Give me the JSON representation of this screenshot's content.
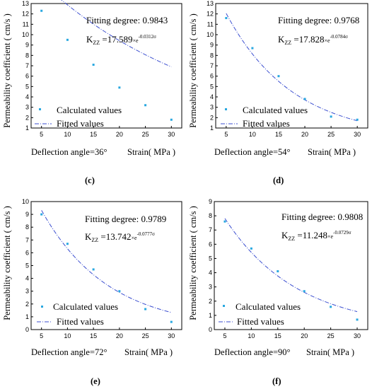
{
  "y_axis_label": "Permeability coefficient ( cm/s )",
  "x_axis_label": "Strain( MPa )",
  "legend": {
    "calculated": "Calculated values",
    "fitted": "Fitted values"
  },
  "annotation_prefix": "Fitting degree: ",
  "formula_parts": {
    "k": "K",
    "sub": "ZZ",
    "eq": " =",
    "mult": "×e",
    "sup_suffix": "σ"
  },
  "colors": {
    "points": "#29a8e0",
    "line": "#3c4fd0"
  },
  "chart_data": [
    {
      "type": "scatter",
      "caption": "(c)",
      "deflection_label": "Deflection angle=36°",
      "fitting_degree": "0.9843",
      "k_coef": "17.589",
      "k_exp": "-0.0312",
      "x": [
        5,
        10,
        15,
        20,
        25,
        30
      ],
      "calculated": [
        12.3,
        9.5,
        7.1,
        4.9,
        3.2,
        1.8
      ],
      "fit_a": 17.589,
      "fit_b": 0.0312,
      "xticks": [
        5,
        10,
        15,
        20,
        25,
        30
      ],
      "xlim": [
        3,
        32
      ],
      "ylim": [
        1,
        13
      ],
      "yticks": [
        1,
        2,
        3,
        4,
        5,
        6,
        7,
        8,
        9,
        10,
        11,
        12,
        13
      ]
    },
    {
      "type": "scatter",
      "caption": "(d)",
      "deflection_label": "Deflection angle=54°",
      "fitting_degree": "0.9768",
      "k_coef": "17.828",
      "k_exp": "-0.0784",
      "x": [
        5,
        10,
        15,
        20,
        25,
        30
      ],
      "calculated": [
        11.6,
        8.7,
        6.0,
        3.8,
        2.1,
        1.8
      ],
      "fit_a": 17.828,
      "fit_b": 0.0784,
      "xticks": [
        5,
        10,
        15,
        20,
        25,
        30
      ],
      "xlim": [
        3,
        32
      ],
      "ylim": [
        1,
        13
      ],
      "yticks": [
        1,
        2,
        3,
        4,
        5,
        6,
        7,
        8,
        9,
        10,
        11,
        12,
        13
      ]
    },
    {
      "type": "scatter",
      "caption": "(e)",
      "deflection_label": "Deflection angle=72°",
      "fitting_degree": "0.9789",
      "k_coef": "13.742",
      "k_exp": "-0.0777",
      "x": [
        5,
        10,
        15,
        20,
        25,
        30
      ],
      "calculated": [
        9.0,
        6.7,
        4.7,
        3.0,
        1.6,
        0.6
      ],
      "fit_a": 13.742,
      "fit_b": 0.0777,
      "xticks": [
        5,
        10,
        15,
        20,
        25,
        30
      ],
      "xlim": [
        3,
        32
      ],
      "ylim": [
        0,
        10
      ],
      "yticks": [
        0,
        1,
        2,
        3,
        4,
        5,
        6,
        7,
        8,
        9,
        10
      ]
    },
    {
      "type": "scatter",
      "caption": "(f)",
      "deflection_label": "Deflection angle=90°",
      "fitting_degree": "0.9808",
      "k_coef": "11.248",
      "k_exp": "-0.0729",
      "x": [
        5,
        10,
        15,
        20,
        25,
        30
      ],
      "calculated": [
        7.6,
        5.7,
        4.1,
        2.7,
        1.6,
        0.7
      ],
      "fit_a": 11.248,
      "fit_b": 0.0729,
      "xticks": [
        5,
        10,
        15,
        20,
        25,
        30
      ],
      "xlim": [
        3,
        32
      ],
      "ylim": [
        0,
        9
      ],
      "yticks": [
        0,
        1,
        2,
        3,
        4,
        5,
        6,
        7,
        8,
        9
      ]
    }
  ]
}
